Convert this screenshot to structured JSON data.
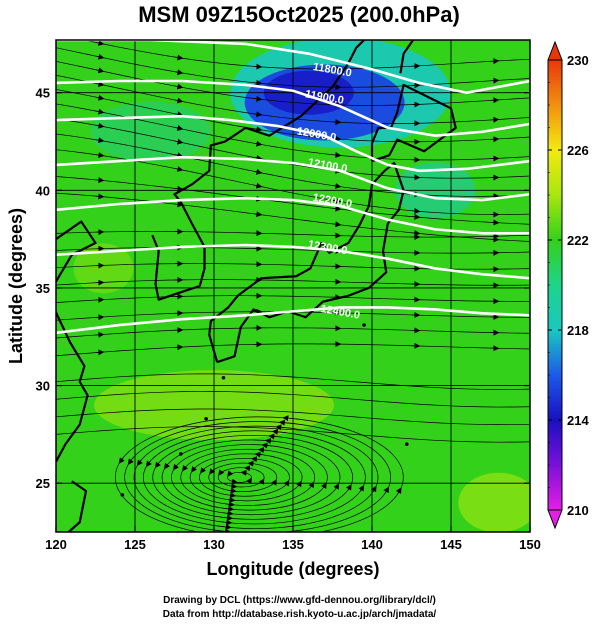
{
  "title": "MSM 09Z15Oct2025 (200.0hPa)",
  "xlabel": "Longitude (degrees)",
  "ylabel": "Latitude  (degrees)",
  "footer": {
    "line1": "Drawing by DCL (https://www.gfd-dennou.org/library/dcl/)",
    "line2": "Data from http://database.rish.kyoto-u.ac.jp/arch/jmadata/"
  },
  "colors": {
    "green": "#33d11a",
    "yellow_green": "#a8e60f",
    "cyan": "#19c8c0",
    "blue": "#1c3ee6",
    "deep_blue": "#1a10c0",
    "magenta": "#e010e0",
    "red": "#e8380a",
    "contour": "#ffffff",
    "coast": "#000000"
  },
  "chart_data": {
    "type": "heatmap",
    "xlim": [
      120,
      150
    ],
    "ylim": [
      22.5,
      47.7
    ],
    "xticks": [
      120,
      125,
      130,
      135,
      140,
      145,
      150
    ],
    "yticks": [
      25,
      30,
      35,
      40,
      45
    ],
    "grid": true,
    "colorbar": {
      "min": 210,
      "max": 230,
      "ticks": [
        210,
        214,
        218,
        222,
        226,
        230
      ],
      "stops": [
        {
          "v": 210,
          "c": "#e61ee6"
        },
        {
          "v": 212,
          "c": "#7a10d8"
        },
        {
          "v": 214,
          "c": "#1a10c0"
        },
        {
          "v": 216,
          "c": "#1c5ae8"
        },
        {
          "v": 218,
          "c": "#19c8c0"
        },
        {
          "v": 220,
          "c": "#1ed48a"
        },
        {
          "v": 222,
          "c": "#33d11a"
        },
        {
          "v": 224,
          "c": "#a8e60f"
        },
        {
          "v": 226,
          "c": "#f2ea10"
        },
        {
          "v": 228,
          "c": "#f29010"
        },
        {
          "v": 230,
          "c": "#e8380a"
        }
      ]
    },
    "contours": [
      {
        "label": "11800.0",
        "label_lon": 137.5,
        "label_lat": 46.2,
        "points": [
          [
            120.0,
            47.7
          ],
          [
            126,
            47.7
          ],
          [
            132,
            47.5
          ],
          [
            136,
            47.0
          ],
          [
            140,
            46.2
          ],
          [
            143,
            45.5
          ],
          [
            146,
            45.0
          ],
          [
            150,
            45.6
          ]
        ]
      },
      {
        "label": "11900.0",
        "label_lon": 137.0,
        "label_lat": 44.8,
        "points": [
          [
            120,
            45.5
          ],
          [
            124,
            45.6
          ],
          [
            128,
            45.6
          ],
          [
            132,
            45.4
          ],
          [
            135,
            45.1
          ],
          [
            138,
            44.3
          ],
          [
            141,
            43.2
          ],
          [
            144,
            42.8
          ],
          [
            147,
            43.0
          ],
          [
            150,
            43.4
          ]
        ]
      },
      {
        "label": "12000.0",
        "label_lon": 136.5,
        "label_lat": 42.9,
        "points": [
          [
            120,
            43.6
          ],
          [
            124,
            43.7
          ],
          [
            128,
            43.8
          ],
          [
            131,
            43.6
          ],
          [
            134,
            43.3
          ],
          [
            137,
            42.8
          ],
          [
            139,
            42.0
          ],
          [
            141,
            41.3
          ],
          [
            143,
            41.0
          ],
          [
            146,
            41.1
          ],
          [
            150,
            41.5
          ]
        ]
      },
      {
        "label": "12100.0",
        "label_lon": 137.2,
        "label_lat": 41.3,
        "points": [
          [
            120,
            41.3
          ],
          [
            124,
            41.5
          ],
          [
            128,
            41.7
          ],
          [
            132,
            41.6
          ],
          [
            135,
            41.4
          ],
          [
            138,
            41.0
          ],
          [
            141,
            40.1
          ],
          [
            144,
            39.6
          ],
          [
            147,
            39.5
          ],
          [
            150,
            39.8
          ]
        ]
      },
      {
        "label": "12200.0",
        "label_lon": 137.5,
        "label_lat": 39.5,
        "points": [
          [
            120,
            39.0
          ],
          [
            124,
            39.3
          ],
          [
            128,
            39.5
          ],
          [
            132,
            39.6
          ],
          [
            135,
            39.5
          ],
          [
            138,
            39.2
          ],
          [
            141,
            38.5
          ],
          [
            144,
            38.0
          ],
          [
            147,
            37.8
          ],
          [
            150,
            37.8
          ]
        ]
      },
      {
        "label": "12300.0",
        "label_lon": 137.2,
        "label_lat": 37.1,
        "points": [
          [
            120,
            36.7
          ],
          [
            124,
            36.9
          ],
          [
            128,
            37.1
          ],
          [
            132,
            37.2
          ],
          [
            135,
            37.1
          ],
          [
            138,
            36.9
          ],
          [
            141,
            36.5
          ],
          [
            144,
            36.0
          ],
          [
            147,
            35.7
          ],
          [
            150,
            35.5
          ]
        ]
      },
      {
        "label": "12400.0",
        "label_lon": 138.0,
        "label_lat": 33.8,
        "points": [
          [
            120,
            32.7
          ],
          [
            124,
            33.1
          ],
          [
            128,
            33.4
          ],
          [
            132,
            33.6
          ],
          [
            135,
            33.8
          ],
          [
            138,
            34.0
          ],
          [
            141,
            34.0
          ],
          [
            144,
            33.9
          ],
          [
            147,
            33.7
          ],
          [
            150,
            33.6
          ]
        ]
      }
    ]
  }
}
